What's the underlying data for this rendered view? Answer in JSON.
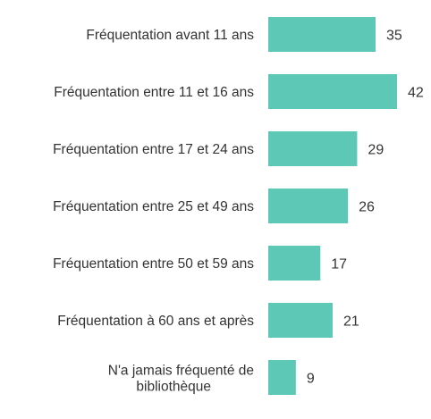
{
  "chart_data": {
    "type": "bar",
    "orientation": "horizontal",
    "categories": [
      "Fréquentation avant 11 ans",
      "Fréquentation entre 11 et 16 ans",
      "Fréquentation entre 17 et 24 ans",
      "Fréquentation entre 25 et 49 ans",
      "Fréquentation entre 50 et 59 ans",
      "Fréquentation à 60 ans et après",
      "N'a jamais fréquenté de bibliothèque"
    ],
    "values": [
      35,
      42,
      29,
      26,
      17,
      21,
      9
    ],
    "title": "",
    "xlabel": "",
    "ylabel": "",
    "xlim": [
      0,
      42
    ],
    "grid": false,
    "legend": "none",
    "data_labels": true,
    "colors": {
      "bar": "#5ec8b6",
      "text": "#333333"
    }
  }
}
